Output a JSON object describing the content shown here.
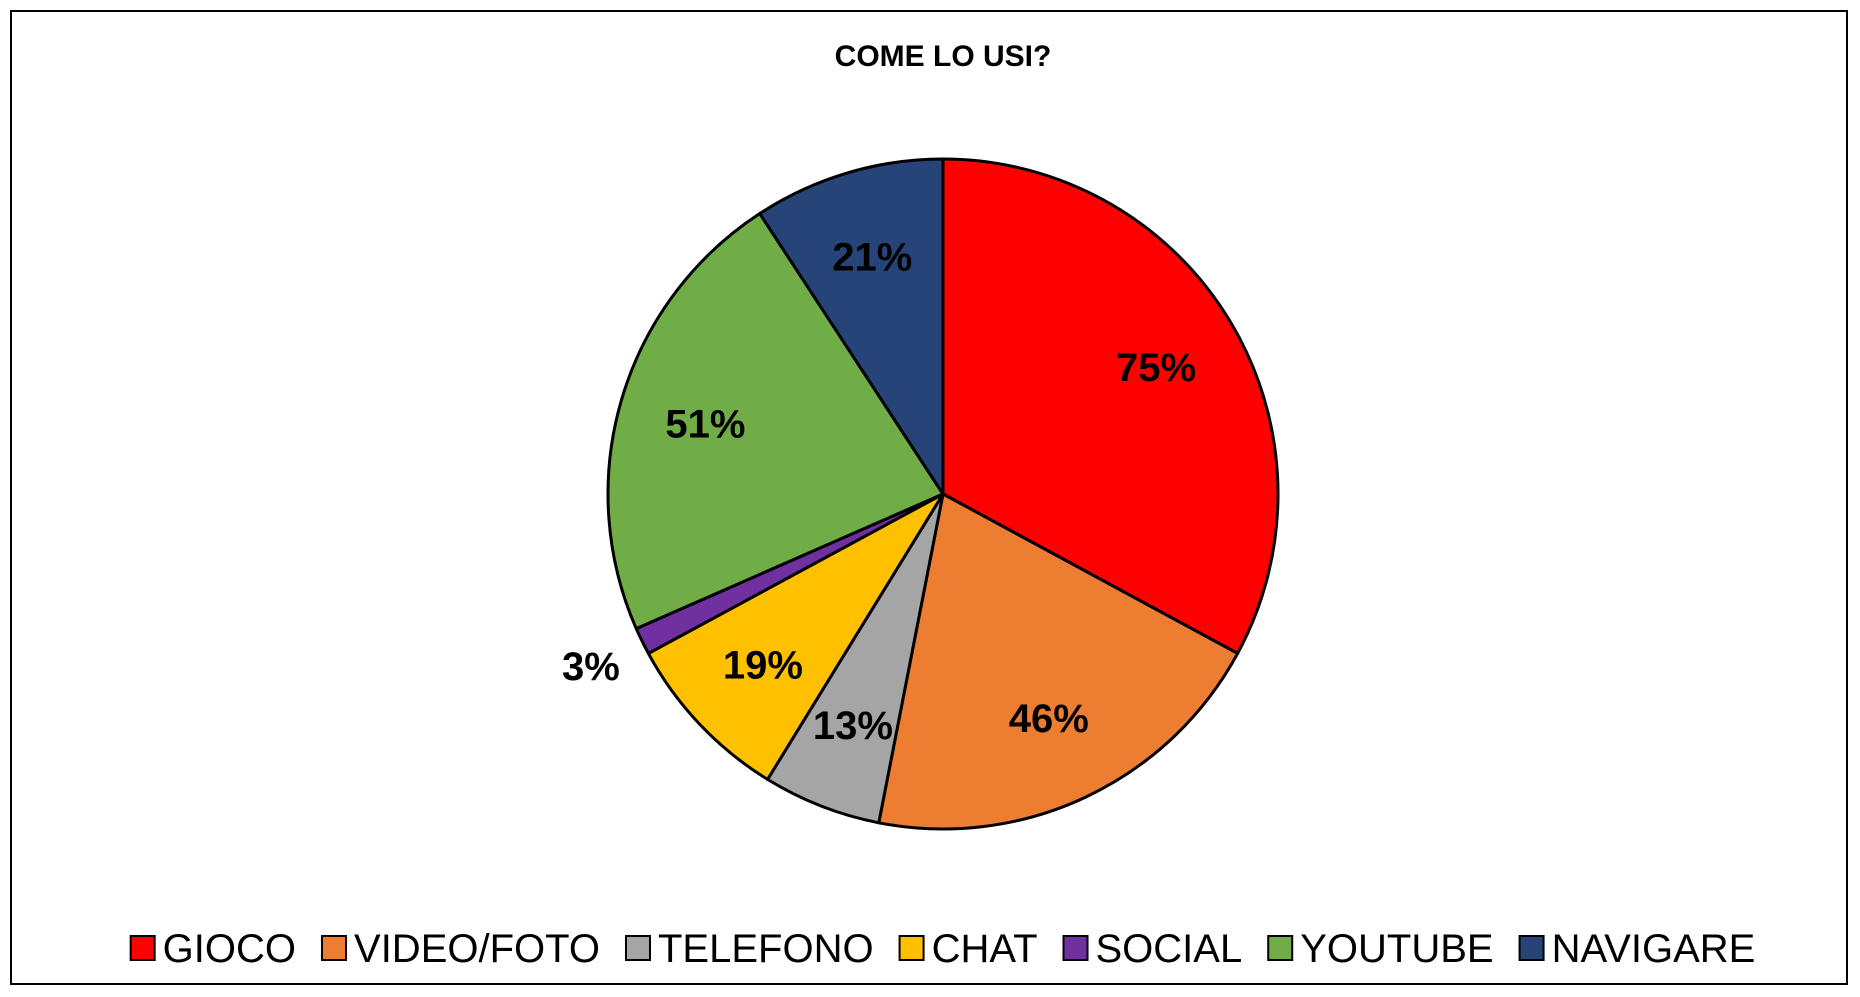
{
  "chart_data": {
    "type": "pie",
    "title": "COME LO USI?",
    "legend_position": "bottom",
    "categories": [
      "GIOCO",
      "VIDEO/FOTO",
      "TELEFONO",
      "CHAT",
      "SOCIAL",
      "YOUTUBE",
      "NAVIGARE"
    ],
    "values": [
      75,
      46,
      13,
      19,
      3,
      51,
      21
    ],
    "labels": [
      "75%",
      "46%",
      "13%",
      "19%",
      "3%",
      "51%",
      "21%"
    ],
    "colors": [
      "#FF0000",
      "#ED7D31",
      "#A5A5A5",
      "#FFC000",
      "#7030A0",
      "#70AD47",
      "#264478"
    ]
  }
}
